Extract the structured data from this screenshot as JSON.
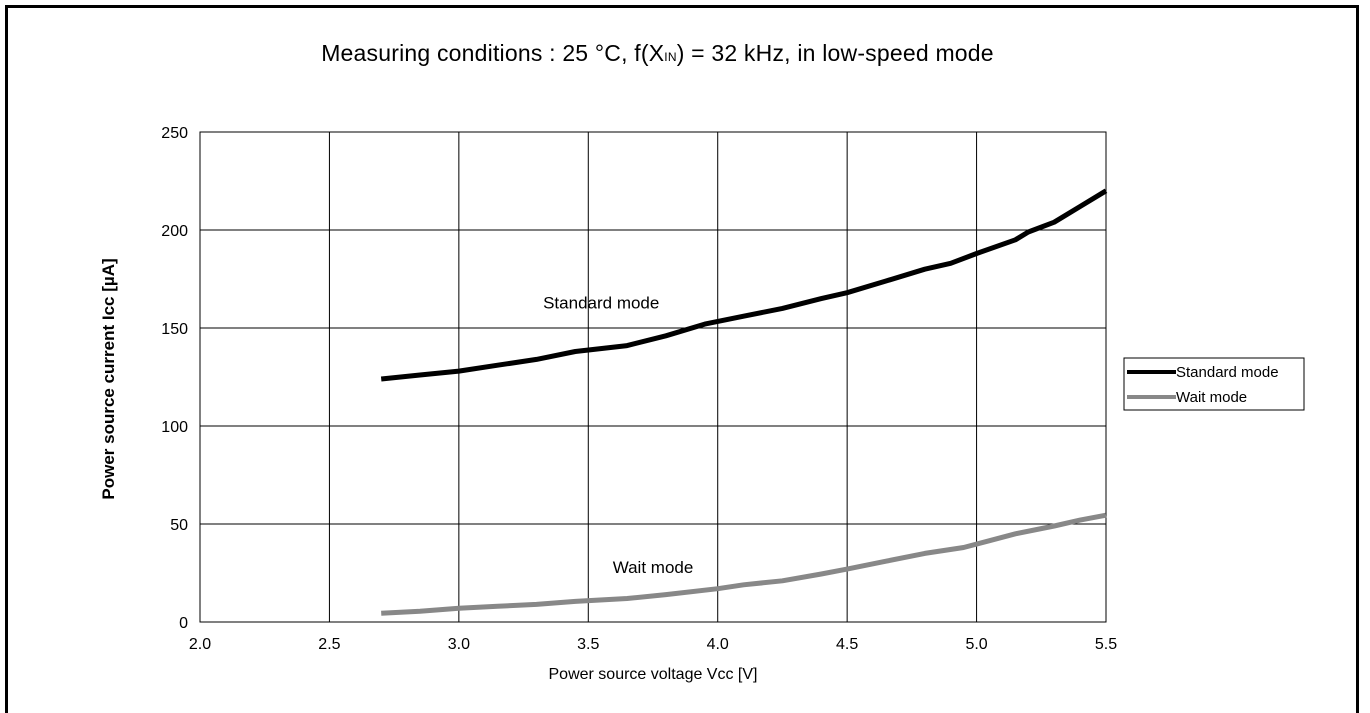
{
  "caption": {
    "prefix": "Measuring conditions : 25 °C, f(X",
    "subscript": "IN",
    "suffix": ") = 32 kHz, in low-speed mode"
  },
  "chart_data": {
    "type": "line",
    "title": "Measuring conditions : 25 °C, f(XIN) = 32 kHz, in low-speed mode",
    "xlabel": "Power source voltage Vcc [V]",
    "ylabel": "Power source current Icc [µA]",
    "xlim": [
      2.0,
      5.5
    ],
    "ylim": [
      0,
      250
    ],
    "x_ticks": [
      "2.0",
      "2.5",
      "3.0",
      "3.5",
      "4.0",
      "4.5",
      "5.0",
      "5.5"
    ],
    "y_ticks": [
      "0",
      "50",
      "100",
      "150",
      "200",
      "250"
    ],
    "grid": true,
    "legend_placement": "right",
    "series": [
      {
        "name": "Standard mode",
        "color": "#000000",
        "x": [
          2.7,
          2.85,
          3.0,
          3.15,
          3.3,
          3.45,
          3.65,
          3.8,
          3.95,
          4.1,
          4.25,
          4.4,
          4.5,
          4.65,
          4.8,
          4.9,
          5.0,
          5.15,
          5.2,
          5.3,
          5.4,
          5.5
        ],
        "y": [
          124,
          126,
          128,
          131,
          134,
          138,
          141,
          146,
          152,
          156,
          160,
          165,
          168,
          174,
          180,
          183,
          188,
          195,
          199,
          204,
          212,
          220
        ]
      },
      {
        "name": "Wait mode",
        "color": "#888888",
        "x": [
          2.7,
          2.85,
          3.0,
          3.15,
          3.3,
          3.45,
          3.65,
          3.8,
          4.0,
          4.1,
          4.25,
          4.4,
          4.5,
          4.65,
          4.8,
          4.95,
          5.05,
          5.15,
          5.3,
          5.4,
          5.5
        ],
        "y": [
          4.5,
          5.5,
          7,
          8,
          9,
          10.5,
          12,
          14,
          17,
          19,
          21,
          24.5,
          27,
          31,
          35,
          38,
          41.5,
          45,
          49,
          52,
          54.5
        ]
      }
    ],
    "annotations": [
      {
        "text": "Standard mode",
        "x": 3.55,
        "y": 160
      },
      {
        "text": "Wait mode",
        "x": 3.75,
        "y": 25
      }
    ]
  }
}
